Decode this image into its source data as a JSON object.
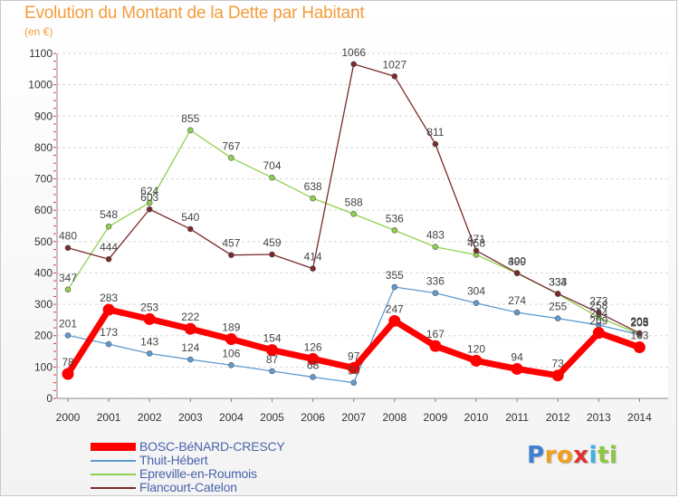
{
  "chart_data": {
    "type": "line",
    "title": "Evolution du Montant de la Dette par Habitant",
    "subtitle": "(en €)",
    "xlabel": "",
    "ylabel": "",
    "x": [
      "2000",
      "2001",
      "2002",
      "2003",
      "2004",
      "2005",
      "2006",
      "2007",
      "2008",
      "2009",
      "2010",
      "2011",
      "2012",
      "2013",
      "2014"
    ],
    "ylim": [
      0,
      1100
    ],
    "yticks": [
      0,
      100,
      200,
      300,
      400,
      500,
      600,
      700,
      800,
      900,
      1000,
      1100
    ],
    "grid": "horizontal",
    "legend_position": "bottom-left",
    "series": [
      {
        "name": "BOSC-BéNARD-CRESCY",
        "color": "#ff0000",
        "values": [
          78,
          283,
          253,
          222,
          189,
          154,
          126,
          97,
          247,
          167,
          120,
          94,
          73,
          209,
          163
        ],
        "labels": [
          "78",
          "283",
          "253",
          "222",
          "189",
          "154",
          "126",
          "97",
          "247",
          "167",
          "120",
          "94",
          "73",
          "209",
          "163"
        ]
      },
      {
        "name": "Thuit-Hébert",
        "color": "#5f9bd0",
        "values": [
          201,
          173,
          143,
          124,
          106,
          87,
          68,
          50,
          355,
          336,
          304,
          274,
          255,
          234,
          203
        ],
        "labels": [
          "201",
          "173",
          "143",
          "124",
          "106",
          "87",
          "68",
          "50",
          "355",
          "336",
          "304",
          "274",
          "255",
          "234",
          "203"
        ]
      },
      {
        "name": "Epreville-en-Roumois",
        "color": "#8fd14f",
        "values": [
          347,
          548,
          624,
          855,
          767,
          704,
          638,
          588,
          536,
          483,
          458,
          399,
          333,
          258,
          205
        ],
        "labels": [
          "347",
          "548",
          "624",
          "855",
          "767",
          "704",
          "638",
          "588",
          "536",
          "483",
          "458",
          "399",
          "333",
          "258",
          "205"
        ]
      },
      {
        "name": "Flancourt-Catelon",
        "color": "#7a2a2a",
        "values": [
          480,
          444,
          603,
          540,
          457,
          459,
          414,
          1066,
          1027,
          811,
          471,
          400,
          334,
          273,
          208
        ],
        "labels": [
          "480",
          "444",
          "603",
          "540",
          "457",
          "459",
          "414",
          "1066",
          "1027",
          "811",
          "471",
          "400",
          "334",
          "273",
          "208"
        ]
      }
    ]
  },
  "logo": {
    "letters": [
      "P",
      "r",
      "o",
      "x",
      "i",
      "t",
      "i"
    ],
    "colors": [
      "#3f7fd0",
      "#f0a020",
      "#f0a020",
      "#e03030",
      "#3fb0e0",
      "#8cc63f",
      "#8cc63f"
    ]
  }
}
